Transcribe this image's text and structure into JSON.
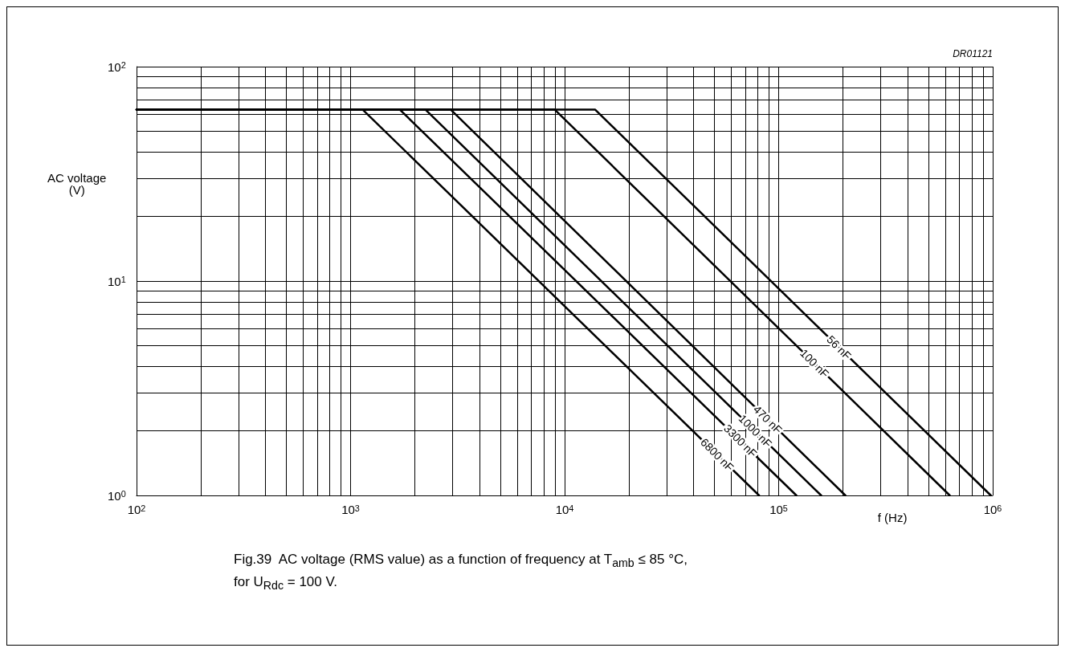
{
  "chart_data": {
    "type": "line",
    "xlabel": "f (Hz)",
    "ylabel": "AC voltage\n(V)",
    "log": "xy",
    "grid": true,
    "legend": false,
    "marker": "none",
    "line_style": "solid",
    "xlim": [
      100,
      1000000
    ],
    "ylim": [
      1,
      100
    ],
    "xticks": [
      {
        "value": 100,
        "label": "10$^{2}$"
      },
      {
        "value": 200,
        "label": null
      },
      {
        "value": 300,
        "label": null
      },
      {
        "value": 400,
        "label": null
      },
      {
        "value": 500,
        "label": null
      },
      {
        "value": 600,
        "label": null
      },
      {
        "value": 700,
        "label": null
      },
      {
        "value": 800,
        "label": null
      },
      {
        "value": 900,
        "label": null
      },
      {
        "value": 1000,
        "label": "10$^{3}$"
      },
      {
        "value": 2000,
        "label": null
      },
      {
        "value": 3000,
        "label": null
      },
      {
        "value": 4000,
        "label": null
      },
      {
        "value": 5000,
        "label": null
      },
      {
        "value": 6000,
        "label": null
      },
      {
        "value": 7000,
        "label": null
      },
      {
        "value": 8000,
        "label": null
      },
      {
        "value": 9000,
        "label": null
      },
      {
        "value": 10000,
        "label": "10$^{4}$"
      },
      {
        "value": 20000,
        "label": null
      },
      {
        "value": 30000,
        "label": null
      },
      {
        "value": 40000,
        "label": null
      },
      {
        "value": 50000,
        "label": null
      },
      {
        "value": 60000,
        "label": null
      },
      {
        "value": 70000,
        "label": null
      },
      {
        "value": 80000,
        "label": null
      },
      {
        "value": 90000,
        "label": null
      },
      {
        "value": 100000,
        "label": "10$^{5}$"
      },
      {
        "value": 200000,
        "label": null
      },
      {
        "value": 300000,
        "label": null
      },
      {
        "value": 400000,
        "label": null
      },
      {
        "value": 500000,
        "label": null
      },
      {
        "value": 600000,
        "label": null
      },
      {
        "value": 700000,
        "label": null
      },
      {
        "value": 800000,
        "label": null
      },
      {
        "value": 900000,
        "label": null
      },
      {
        "value": 1000000,
        "label": "10$^{6}$"
      }
    ],
    "yticks": [
      {
        "value": 1,
        "label": "10$^{0}$"
      },
      {
        "value": 2,
        "label": null
      },
      {
        "value": 3,
        "label": null
      },
      {
        "value": 4,
        "label": null
      },
      {
        "value": 5,
        "label": null
      },
      {
        "value": 6,
        "label": null
      },
      {
        "value": 7,
        "label": null
      },
      {
        "value": 8,
        "label": null
      },
      {
        "value": 9,
        "label": null
      },
      {
        "value": 10,
        "label": "10$^{1}$"
      },
      {
        "value": 20,
        "label": null
      },
      {
        "value": 30,
        "label": null
      },
      {
        "value": 40,
        "label": null
      },
      {
        "value": 50,
        "label": null
      },
      {
        "value": 60,
        "label": null
      },
      {
        "value": 70,
        "label": null
      },
      {
        "value": 80,
        "label": null
      },
      {
        "value": 90,
        "label": null
      },
      {
        "value": 100,
        "label": "10$^{2}$"
      }
    ],
    "series": [
      {
        "name": "6800 nF",
        "color": "#000000",
        "x": [
          100,
          1140,
          81000
        ],
        "values": [
          63,
          63,
          1
        ]
      },
      {
        "name": "3300 nF",
        "color": "#000000",
        "x": [
          100,
          1700,
          121000
        ],
        "values": [
          63,
          63,
          1
        ]
      },
      {
        "name": "1000 nF",
        "color": "#000000",
        "x": [
          100,
          2240,
          158000
        ],
        "values": [
          63,
          63,
          1
        ]
      },
      {
        "name": "470 nF",
        "color": "#000000",
        "x": [
          100,
          2940,
          205000
        ],
        "values": [
          63,
          63,
          1
        ]
      },
      {
        "name": "100 nF",
        "color": "#000000",
        "x": [
          100,
          9000,
          630000
        ],
        "values": [
          63,
          63,
          1
        ]
      },
      {
        "name": "56 nF",
        "color": "#000000",
        "x": [
          100,
          13900,
          980000
        ],
        "values": [
          63,
          63,
          1
        ]
      }
    ],
    "annotations": [
      "DR01121",
      "Fig.39  AC voltage (RMS value) as a function of frequency at T$_{amb}$ ≤ 85 °C, for U$_{Rdc}$ = 100 V."
    ]
  }
}
